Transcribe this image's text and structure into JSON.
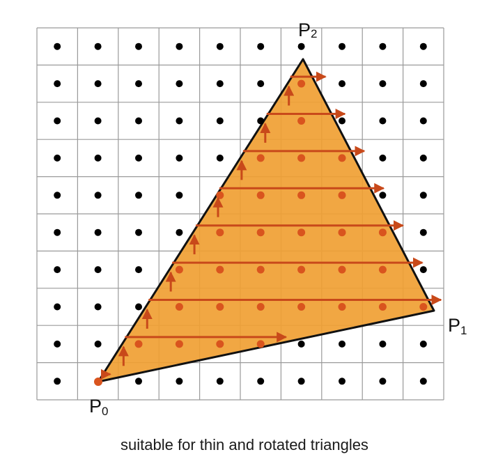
{
  "diagram": {
    "caption": "suitable for thin and rotated triangles",
    "vertices": [
      {
        "letter": "P",
        "index": "0"
      },
      {
        "letter": "P",
        "index": "1"
      },
      {
        "letter": "P",
        "index": "2"
      }
    ],
    "grid": {
      "columns": 10,
      "rows": 10
    },
    "colors": {
      "triangle_fill": "#f0a033",
      "triangle_stroke": "#111111",
      "grid_line": "#9a9a9a",
      "pixel_center": "#000000",
      "covered_center": "#d9541e",
      "traversal_arrow": "#c8491a"
    }
  }
}
